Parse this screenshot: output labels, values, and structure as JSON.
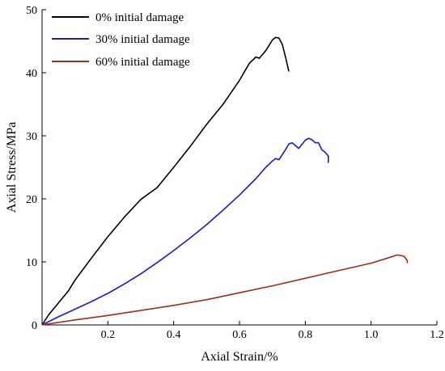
{
  "chart_data": {
    "type": "line",
    "title": "",
    "xlabel": "Axial Strain/%",
    "ylabel": "Axial Stress/MPa",
    "xlim": [
      0,
      1.2
    ],
    "ylim": [
      0,
      50
    ],
    "xticks": [
      0.2,
      0.4,
      0.6,
      0.8,
      1.0,
      1.2
    ],
    "xtick_labels": [
      "0.2",
      "0.4",
      "0.6",
      "0.8",
      "1.0",
      "1.2"
    ],
    "yticks": [
      0,
      10,
      20,
      30,
      40,
      50
    ],
    "ytick_labels": [
      "0",
      "10",
      "20",
      "30",
      "40",
      "50"
    ],
    "grid": false,
    "legend_position": "top-left",
    "series": [
      {
        "name": "0% initial damage",
        "color": "#000000",
        "points": [
          [
            0,
            0
          ],
          [
            0.02,
            1.6
          ],
          [
            0.05,
            3.5
          ],
          [
            0.08,
            5.4
          ],
          [
            0.1,
            7.1
          ],
          [
            0.15,
            10.6
          ],
          [
            0.2,
            14.0
          ],
          [
            0.25,
            17.1
          ],
          [
            0.3,
            19.9
          ],
          [
            0.35,
            21.8
          ],
          [
            0.4,
            25.0
          ],
          [
            0.45,
            28.3
          ],
          [
            0.5,
            31.8
          ],
          [
            0.55,
            35.0
          ],
          [
            0.6,
            38.8
          ],
          [
            0.63,
            41.5
          ],
          [
            0.65,
            42.5
          ],
          [
            0.66,
            42.3
          ],
          [
            0.68,
            43.5
          ],
          [
            0.7,
            45.2
          ],
          [
            0.71,
            45.6
          ],
          [
            0.72,
            45.5
          ],
          [
            0.73,
            44.5
          ],
          [
            0.74,
            42.5
          ],
          [
            0.75,
            40.2
          ]
        ]
      },
      {
        "name": "30% initial damage",
        "color": "#1a1acc",
        "points": [
          [
            0,
            0
          ],
          [
            0.05,
            1.3
          ],
          [
            0.1,
            2.5
          ],
          [
            0.15,
            3.7
          ],
          [
            0.2,
            5.0
          ],
          [
            0.25,
            6.5
          ],
          [
            0.3,
            8.1
          ],
          [
            0.35,
            9.9
          ],
          [
            0.4,
            11.8
          ],
          [
            0.45,
            13.8
          ],
          [
            0.5,
            15.9
          ],
          [
            0.55,
            18.2
          ],
          [
            0.6,
            20.6
          ],
          [
            0.65,
            23.2
          ],
          [
            0.68,
            25.0
          ],
          [
            0.7,
            26.0
          ],
          [
            0.71,
            26.4
          ],
          [
            0.72,
            26.2
          ],
          [
            0.74,
            27.8
          ],
          [
            0.75,
            28.7
          ],
          [
            0.76,
            28.9
          ],
          [
            0.78,
            28.0
          ],
          [
            0.8,
            29.3
          ],
          [
            0.81,
            29.6
          ],
          [
            0.82,
            29.4
          ],
          [
            0.83,
            28.9
          ],
          [
            0.84,
            28.9
          ],
          [
            0.85,
            27.8
          ],
          [
            0.86,
            27.4
          ],
          [
            0.87,
            26.8
          ],
          [
            0.87,
            25.7
          ]
        ]
      },
      {
        "name": "60% initial damage",
        "color": "#a52a1a",
        "points": [
          [
            0,
            0
          ],
          [
            0.1,
            0.8
          ],
          [
            0.2,
            1.5
          ],
          [
            0.3,
            2.3
          ],
          [
            0.4,
            3.1
          ],
          [
            0.5,
            4.0
          ],
          [
            0.6,
            5.1
          ],
          [
            0.7,
            6.2
          ],
          [
            0.8,
            7.4
          ],
          [
            0.9,
            8.6
          ],
          [
            1.0,
            9.8
          ],
          [
            1.05,
            10.6
          ],
          [
            1.08,
            11.1
          ],
          [
            1.1,
            10.9
          ],
          [
            1.11,
            10.2
          ],
          [
            1.11,
            9.8
          ]
        ]
      }
    ]
  }
}
